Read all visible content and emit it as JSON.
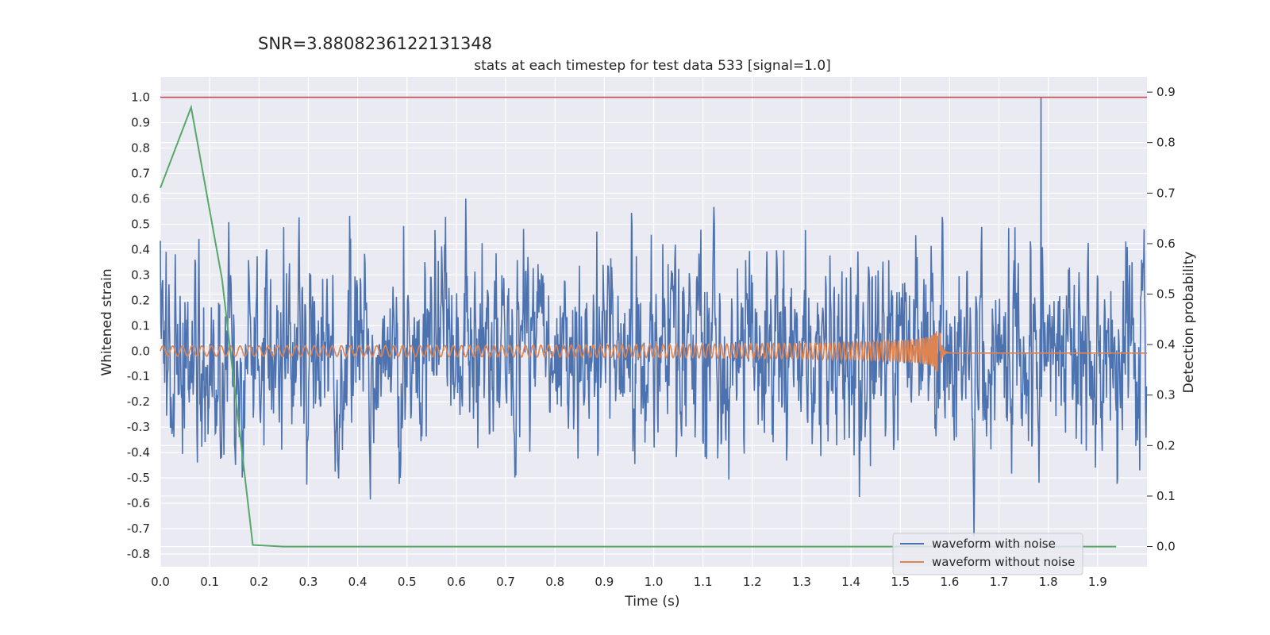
{
  "chart_data": {
    "type": "line",
    "suptitle": "SNR=3.8808236122131348",
    "title": "stats at each timestep for test data 533 [signal=1.0]",
    "xlabel": "Time (s)",
    "ylabel_left": "Whitened strain",
    "ylabel_right": "Detection probability",
    "xlim": [
      0.0,
      2.0
    ],
    "ylim_left": [
      -0.85,
      1.08
    ],
    "ylim_right": [
      -0.04,
      0.93
    ],
    "xticks": [
      "0.0",
      "0.1",
      "0.2",
      "0.3",
      "0.4",
      "0.5",
      "0.6",
      "0.7",
      "0.8",
      "0.9",
      "1.0",
      "1.1",
      "1.2",
      "1.3",
      "1.4",
      "1.5",
      "1.6",
      "1.7",
      "1.8",
      "1.9"
    ],
    "yticks_left": [
      "1.0",
      "0.9",
      "0.8",
      "0.7",
      "0.6",
      "0.5",
      "0.4",
      "0.3",
      "0.2",
      "0.1",
      "0.0",
      "-0.1",
      "-0.2",
      "-0.3",
      "-0.4",
      "-0.5",
      "-0.6",
      "-0.7",
      "-0.8"
    ],
    "yticks_right": [
      "0.9",
      "0.8",
      "0.7",
      "0.6",
      "0.5",
      "0.4",
      "0.3",
      "0.2",
      "0.1",
      "0.0"
    ],
    "grid": true,
    "legend_position": "bottom-right",
    "series": [
      {
        "name": "waveform with noise",
        "axis": "left",
        "color": "#4c72b0",
        "kind": "noisy-strain",
        "n_samples": 2048,
        "approx_range": [
          -0.75,
          1.0
        ],
        "peak": {
          "x": 1.785,
          "y": 1.0
        }
      },
      {
        "name": "waveform without noise",
        "axis": "left",
        "color": "#dd8452",
        "kind": "chirp",
        "merger_time": 1.58,
        "amplitude_start": 0.02,
        "amplitude_peak": 0.1
      },
      {
        "axis": "right",
        "color": "#55a868",
        "x": [
          0.0,
          0.0625,
          0.125,
          0.1875,
          0.25,
          0.3125,
          0.375,
          0.4375,
          0.5,
          0.5625,
          0.625,
          0.6875,
          0.75,
          0.8125,
          0.875,
          0.9375,
          1.0,
          1.0625,
          1.125,
          1.1875,
          1.25,
          1.3125,
          1.375,
          1.4375,
          1.5,
          1.5625,
          1.625,
          1.6875,
          1.75,
          1.8125,
          1.875,
          1.9375
        ],
        "y": [
          0.71,
          0.87,
          0.53,
          0.003,
          0.0,
          0.0,
          0.0,
          0.0,
          0.0,
          0.0,
          0.0,
          0.0,
          0.0,
          0.0,
          0.0,
          0.0,
          0.0,
          0.0,
          0.0,
          0.0,
          0.0,
          0.0,
          0.0,
          0.0,
          0.0,
          0.0,
          0.0,
          0.0,
          0.0,
          0.0,
          0.0,
          0.0
        ]
      },
      {
        "axis": "left",
        "color": "#c44e52",
        "kind": "hline",
        "y": 1.0
      }
    ]
  }
}
